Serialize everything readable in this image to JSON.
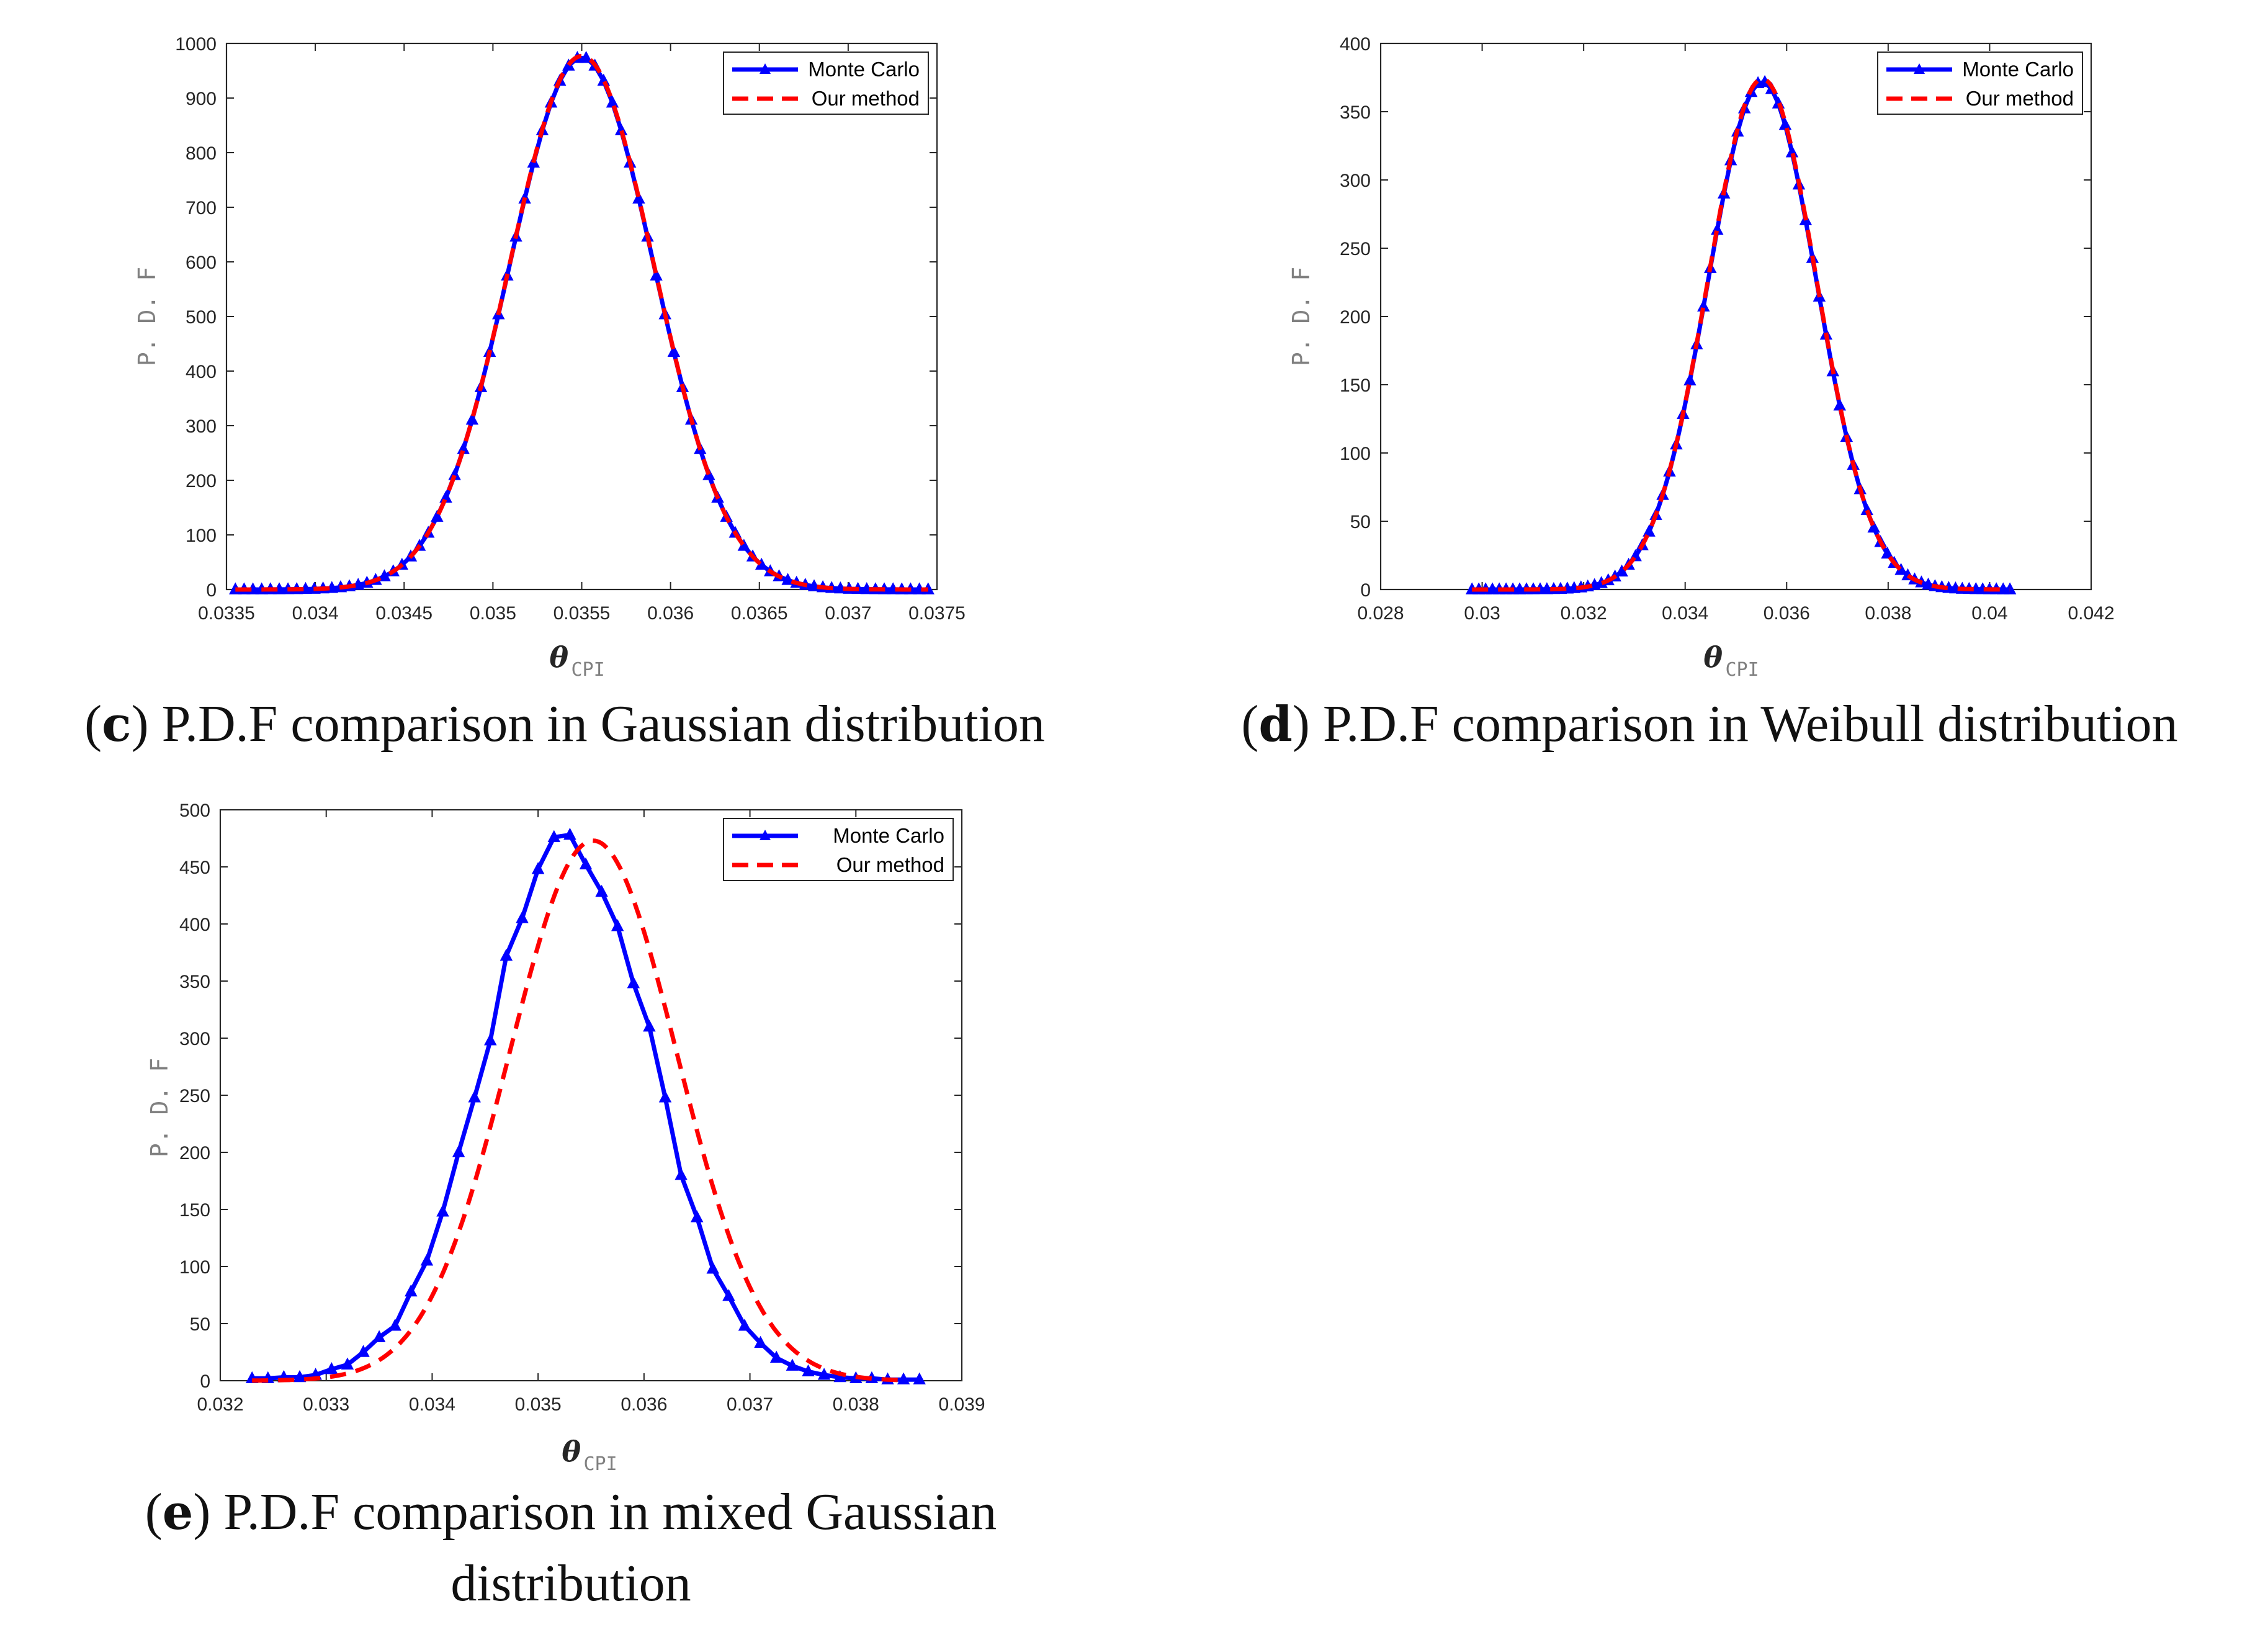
{
  "charts": [
    {
      "id": "c",
      "letter": "c",
      "caption_lines": [
        "P.D.F comparison in Gaussian distribution"
      ],
      "chart_data": {
        "type": "line",
        "title": "",
        "xlabel_symbol": "θ",
        "xlabel_subscript": "CPI",
        "ylabel": "P. D. F",
        "xlim": [
          0.0335,
          0.0375
        ],
        "ylim": [
          0,
          1000
        ],
        "xticks": [
          0.0335,
          0.034,
          0.0345,
          0.035,
          0.0355,
          0.036,
          0.0365,
          0.037,
          0.0375
        ],
        "xtick_labels": [
          "0.0335",
          "0.034",
          "0.0345",
          "0.035",
          "0.0355",
          "0.036",
          "0.0365",
          "0.037",
          "0.0375"
        ],
        "yticks": [
          0,
          100,
          200,
          300,
          400,
          500,
          600,
          700,
          800,
          900,
          1000
        ],
        "ytick_labels": [
          "0",
          "100",
          "200",
          "300",
          "400",
          "500",
          "600",
          "700",
          "800",
          "900",
          "1000"
        ],
        "legend_position": "top-right",
        "series": [
          {
            "name": "Monte Carlo",
            "style": "solid-triangle",
            "color": "#0000ff",
            "kind": "gauss",
            "params": {
              "mu": 0.0355,
              "sigma": 0.000408,
              "peak": 975,
              "xmin": 0.03355,
              "xmax": 0.03745,
              "n": 80
            }
          },
          {
            "name": "Our method",
            "style": "dashed",
            "color": "#ff0000",
            "kind": "gauss",
            "params": {
              "mu": 0.0355,
              "sigma": 0.000408,
              "peak": 977,
              "xmin": 0.03355,
              "xmax": 0.03745,
              "n": 240
            }
          }
        ]
      }
    },
    {
      "id": "d",
      "letter": "d",
      "caption_lines": [
        "P.D.F comparison in Weibull distribution"
      ],
      "chart_data": {
        "type": "line",
        "title": "",
        "xlabel_symbol": "θ",
        "xlabel_subscript": "CPI",
        "ylabel": "P. D. F",
        "xlim": [
          0.028,
          0.042
        ],
        "ylim": [
          0,
          400
        ],
        "xticks": [
          0.028,
          0.03,
          0.032,
          0.034,
          0.036,
          0.038,
          0.04,
          0.042
        ],
        "xtick_labels": [
          "0.028",
          "0.03",
          "0.032",
          "0.034",
          "0.036",
          "0.038",
          "0.04",
          "0.042"
        ],
        "yticks": [
          0,
          50,
          100,
          150,
          200,
          250,
          300,
          350,
          400
        ],
        "ytick_labels": [
          "0",
          "50",
          "100",
          "150",
          "200",
          "250",
          "300",
          "350",
          "400"
        ],
        "legend_position": "top-right",
        "series": [
          {
            "name": "Monte Carlo",
            "style": "solid-triangle",
            "color": "#0000ff",
            "kind": "gauss",
            "params": {
              "mu": 0.03552,
              "sigma": 0.00107,
              "peak": 372,
              "xmin": 0.0298,
              "xmax": 0.0404,
              "n": 80
            }
          },
          {
            "name": "Our method",
            "style": "dashed",
            "color": "#ff0000",
            "kind": "gauss",
            "params": {
              "mu": 0.03552,
              "sigma": 0.00107,
              "peak": 374,
              "xmin": 0.0298,
              "xmax": 0.0404,
              "n": 240
            }
          }
        ]
      }
    },
    {
      "id": "e",
      "letter": "e",
      "caption_lines": [
        "P.D.F comparison in mixed Gaussian",
        "distribution"
      ],
      "chart_data": {
        "type": "line",
        "title": "",
        "xlabel_symbol": "θ",
        "xlabel_subscript": "CPI",
        "ylabel": "P. D. F",
        "xlim": [
          0.032,
          0.039
        ],
        "ylim": [
          0,
          500
        ],
        "xticks": [
          0.032,
          0.033,
          0.034,
          0.035,
          0.036,
          0.037,
          0.038,
          0.039
        ],
        "xtick_labels": [
          "0.032",
          "0.033",
          "0.034",
          "0.035",
          "0.036",
          "0.037",
          "0.038",
          "0.039"
        ],
        "yticks": [
          0,
          50,
          100,
          150,
          200,
          250,
          300,
          350,
          400,
          450,
          500
        ],
        "ytick_labels": [
          "0",
          "50",
          "100",
          "150",
          "200",
          "250",
          "300",
          "350",
          "400",
          "450",
          "500"
        ],
        "legend_position": "top-right",
        "series": [
          {
            "name": "Monte Carlo",
            "style": "solid-triangle",
            "color": "#0000ff",
            "kind": "points",
            "x": [
              0.0323,
              0.03245,
              0.0326,
              0.03275,
              0.0329,
              0.03305,
              0.0332,
              0.03335,
              0.0335,
              0.03365,
              0.0338,
              0.03395,
              0.0341,
              0.03425,
              0.0344,
              0.03455,
              0.0347,
              0.03485,
              0.035,
              0.03515,
              0.0353,
              0.03545,
              0.0356,
              0.03575,
              0.0359,
              0.03605,
              0.0362,
              0.03635,
              0.0365,
              0.03665,
              0.0368,
              0.03695,
              0.0371,
              0.03725,
              0.0374,
              0.03755,
              0.0377,
              0.03785,
              0.038,
              0.03815,
              0.0383,
              0.03845,
              0.0386
            ],
            "y": [
              2,
              2,
              3,
              3,
              5,
              10,
              14,
              25,
              38,
              48,
              78,
              105,
              148,
              200,
              248,
              298,
              372,
              405,
              448,
              476,
              478,
              452,
              428,
              398,
              348,
              310,
              248,
              180,
              143,
              98,
              74,
              48,
              33,
              20,
              13,
              8,
              5,
              3,
              2,
              2,
              1,
              1,
              1
            ]
          },
          {
            "name": "Our method",
            "style": "dashed",
            "color": "#ff0000",
            "kind": "gauss",
            "params": {
              "mu": 0.03552,
              "sigma": 0.00079,
              "peak": 473,
              "xmin": 0.0323,
              "xmax": 0.0384,
              "n": 240
            }
          }
        ]
      }
    }
  ]
}
